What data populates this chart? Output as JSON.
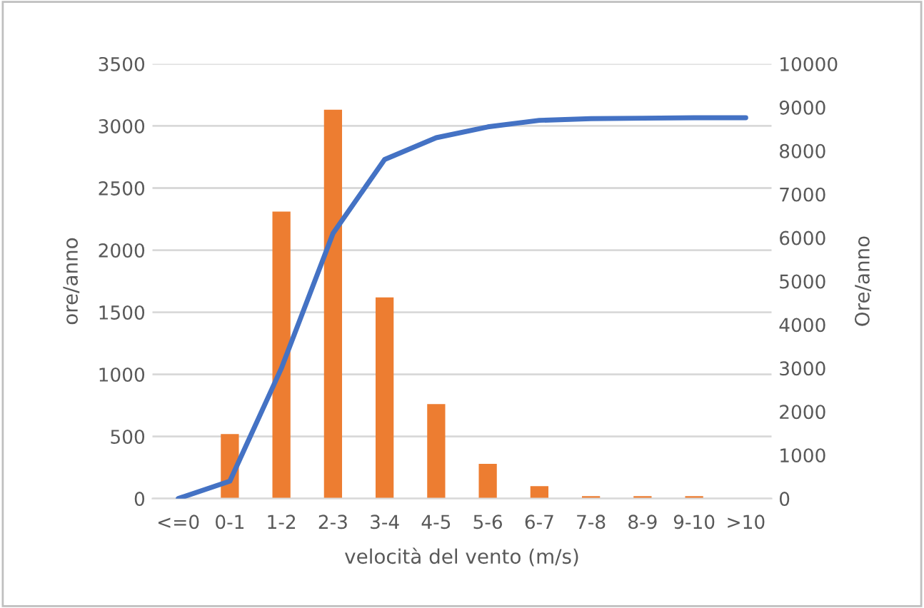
{
  "chart_data": {
    "type": "bar",
    "xlabel": "velocità del vento (m/s)",
    "ylabel": "ore/anno",
    "y2label": "Ore/anno",
    "categories": [
      "<=0",
      "0-1",
      "1-2",
      "2-3",
      "3-4",
      "4-5",
      "5-6",
      "6-7",
      "7-8",
      "8-9",
      "9-10",
      ">10"
    ],
    "series": [
      {
        "color": "#ed7d31",
        "values": [
          0,
          520,
          2310,
          3130,
          1620,
          760,
          280,
          100,
          20,
          20,
          20,
          0
        ]
      },
      {
        "type": "line",
        "axis": "y2",
        "color": "#4472c4",
        "line_style": "solid",
        "values": [
          0,
          400,
          3000,
          6100,
          7800,
          8300,
          8550,
          8700,
          8740,
          8750,
          8760,
          8760
        ]
      }
    ],
    "ylim": [
      0,
      3500
    ],
    "yticks": [
      0,
      500,
      1000,
      1500,
      2000,
      2500,
      3000,
      3500
    ],
    "y2lim": [
      0,
      10000
    ],
    "y2ticks": [
      0,
      1000,
      2000,
      3000,
      4000,
      5000,
      6000,
      7000,
      8000,
      9000,
      10000
    ],
    "grid": "y",
    "legend": false
  }
}
